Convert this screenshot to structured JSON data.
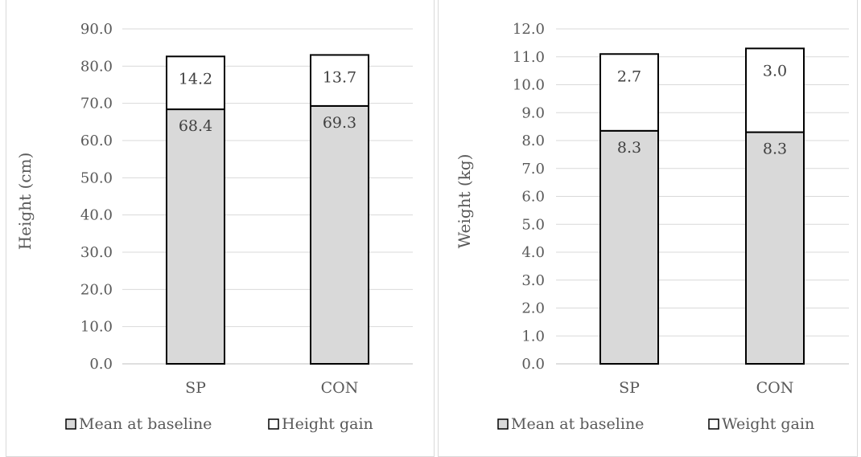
{
  "chart_data": [
    {
      "type": "bar",
      "stacked": true,
      "title": "",
      "xlabel": "",
      "ylabel": "Height (cm)",
      "ylim": [
        0,
        90
      ],
      "ytick_step": 10,
      "ytick_labels": [
        "0.0",
        "10.0",
        "20.0",
        "30.0",
        "40.0",
        "50.0",
        "60.0",
        "70.0",
        "80.0",
        "90.0"
      ],
      "categories": [
        "SP",
        "CON"
      ],
      "series": [
        {
          "name": "Mean at baseline",
          "values": [
            68.4,
            69.3
          ],
          "labels": [
            "68.4",
            "69.3"
          ],
          "color": "#d9d9d9"
        },
        {
          "name": "Height gain",
          "values": [
            14.2,
            13.7
          ],
          "labels": [
            "14.2",
            "13.7"
          ],
          "color": "#ffffff"
        }
      ],
      "grid": true,
      "legend": "bottom"
    },
    {
      "type": "bar",
      "stacked": true,
      "title": "",
      "xlabel": "",
      "ylabel": "Weight (kg)",
      "ylim": [
        0,
        12
      ],
      "ytick_step": 1,
      "ytick_labels": [
        "0.0",
        "1.0",
        "2.0",
        "3.0",
        "4.0",
        "5.0",
        "6.0",
        "7.0",
        "8.0",
        "9.0",
        "10.0",
        "11.0",
        "12.0"
      ],
      "categories": [
        "SP",
        "CON"
      ],
      "series": [
        {
          "name": "Mean at baseline",
          "values": [
            8.35,
            8.3
          ],
          "labels": [
            "8.3",
            "8.3"
          ],
          "color": "#d9d9d9"
        },
        {
          "name": "Weight gain",
          "values": [
            2.75,
            3.0
          ],
          "labels": [
            "2.7",
            "3.0"
          ],
          "color": "#ffffff"
        }
      ],
      "grid": true,
      "legend": "bottom"
    }
  ]
}
